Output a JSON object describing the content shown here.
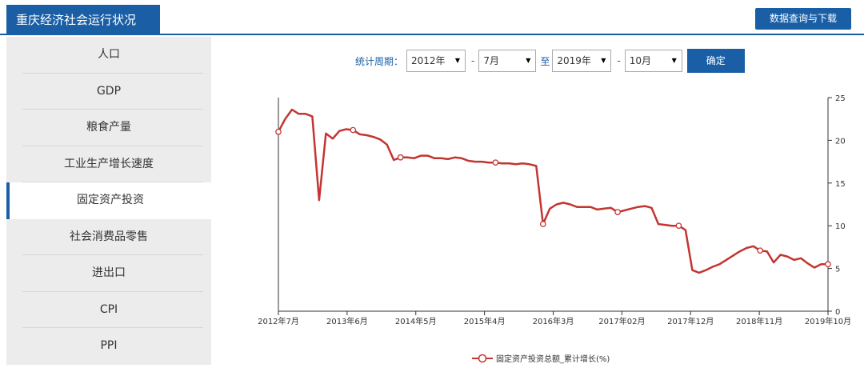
{
  "app": {
    "title": "重庆经济社会运行状况",
    "query_button": "数据查询与下载"
  },
  "sidebar": {
    "items": [
      {
        "label": "人口"
      },
      {
        "label": "GDP"
      },
      {
        "label": "粮食产量"
      },
      {
        "label": "工业生产增长速度"
      },
      {
        "label": "固定资产投资",
        "active": true
      },
      {
        "label": "社会消费品零售"
      },
      {
        "label": "进出口"
      },
      {
        "label": "CPI"
      },
      {
        "label": "PPI"
      }
    ]
  },
  "filter": {
    "label": "统计周期：",
    "start_year": "2012年",
    "start_month": "7月",
    "to": "至",
    "end_year": "2019年",
    "end_month": "10月",
    "dash": "-",
    "confirm": "确定"
  },
  "colors": {
    "brand": "#1a5fa6",
    "series": "#c23531"
  },
  "chart_data": {
    "type": "line",
    "x_tick_labels": [
      "2012年7月",
      "2013年6月",
      "2014年5月",
      "2015年4月",
      "2016年3月",
      "2017年02月",
      "2017年12月",
      "2018年11月",
      "2019年10月"
    ],
    "ylim": [
      0,
      25
    ],
    "y_ticks": [
      0,
      5,
      10,
      15,
      20,
      25
    ],
    "y_axis_position": "right",
    "legend_position": "bottom-center",
    "series": [
      {
        "name": "固定资产投资总额_累计增长(%)",
        "values": [
          21.0,
          22.5,
          23.6,
          23.1,
          23.1,
          22.8,
          13.0,
          20.8,
          20.2,
          21.1,
          21.3,
          21.2,
          20.7,
          20.6,
          20.4,
          20.1,
          19.5,
          17.7,
          18.0,
          18.0,
          17.9,
          18.2,
          18.2,
          17.9,
          17.9,
          17.8,
          18.0,
          17.9,
          17.6,
          17.5,
          17.5,
          17.4,
          17.4,
          17.3,
          17.3,
          17.2,
          17.3,
          17.2,
          17.0,
          10.2,
          12.0,
          12.5,
          12.7,
          12.5,
          12.2,
          12.2,
          12.2,
          11.9,
          12.0,
          12.1,
          11.6,
          11.8,
          12.0,
          12.2,
          12.3,
          12.1,
          10.2,
          10.1,
          10.0,
          10.0,
          9.5,
          4.8,
          4.5,
          4.8,
          5.2,
          5.5,
          6.0,
          6.5,
          7.0,
          7.4,
          7.6,
          7.1,
          7.0,
          5.7,
          6.6,
          6.4,
          6.0,
          6.2,
          5.6,
          5.1,
          5.5,
          5.5
        ],
        "marker_indices": [
          0,
          11,
          18,
          32,
          39,
          50,
          59,
          71,
          81
        ]
      }
    ]
  }
}
